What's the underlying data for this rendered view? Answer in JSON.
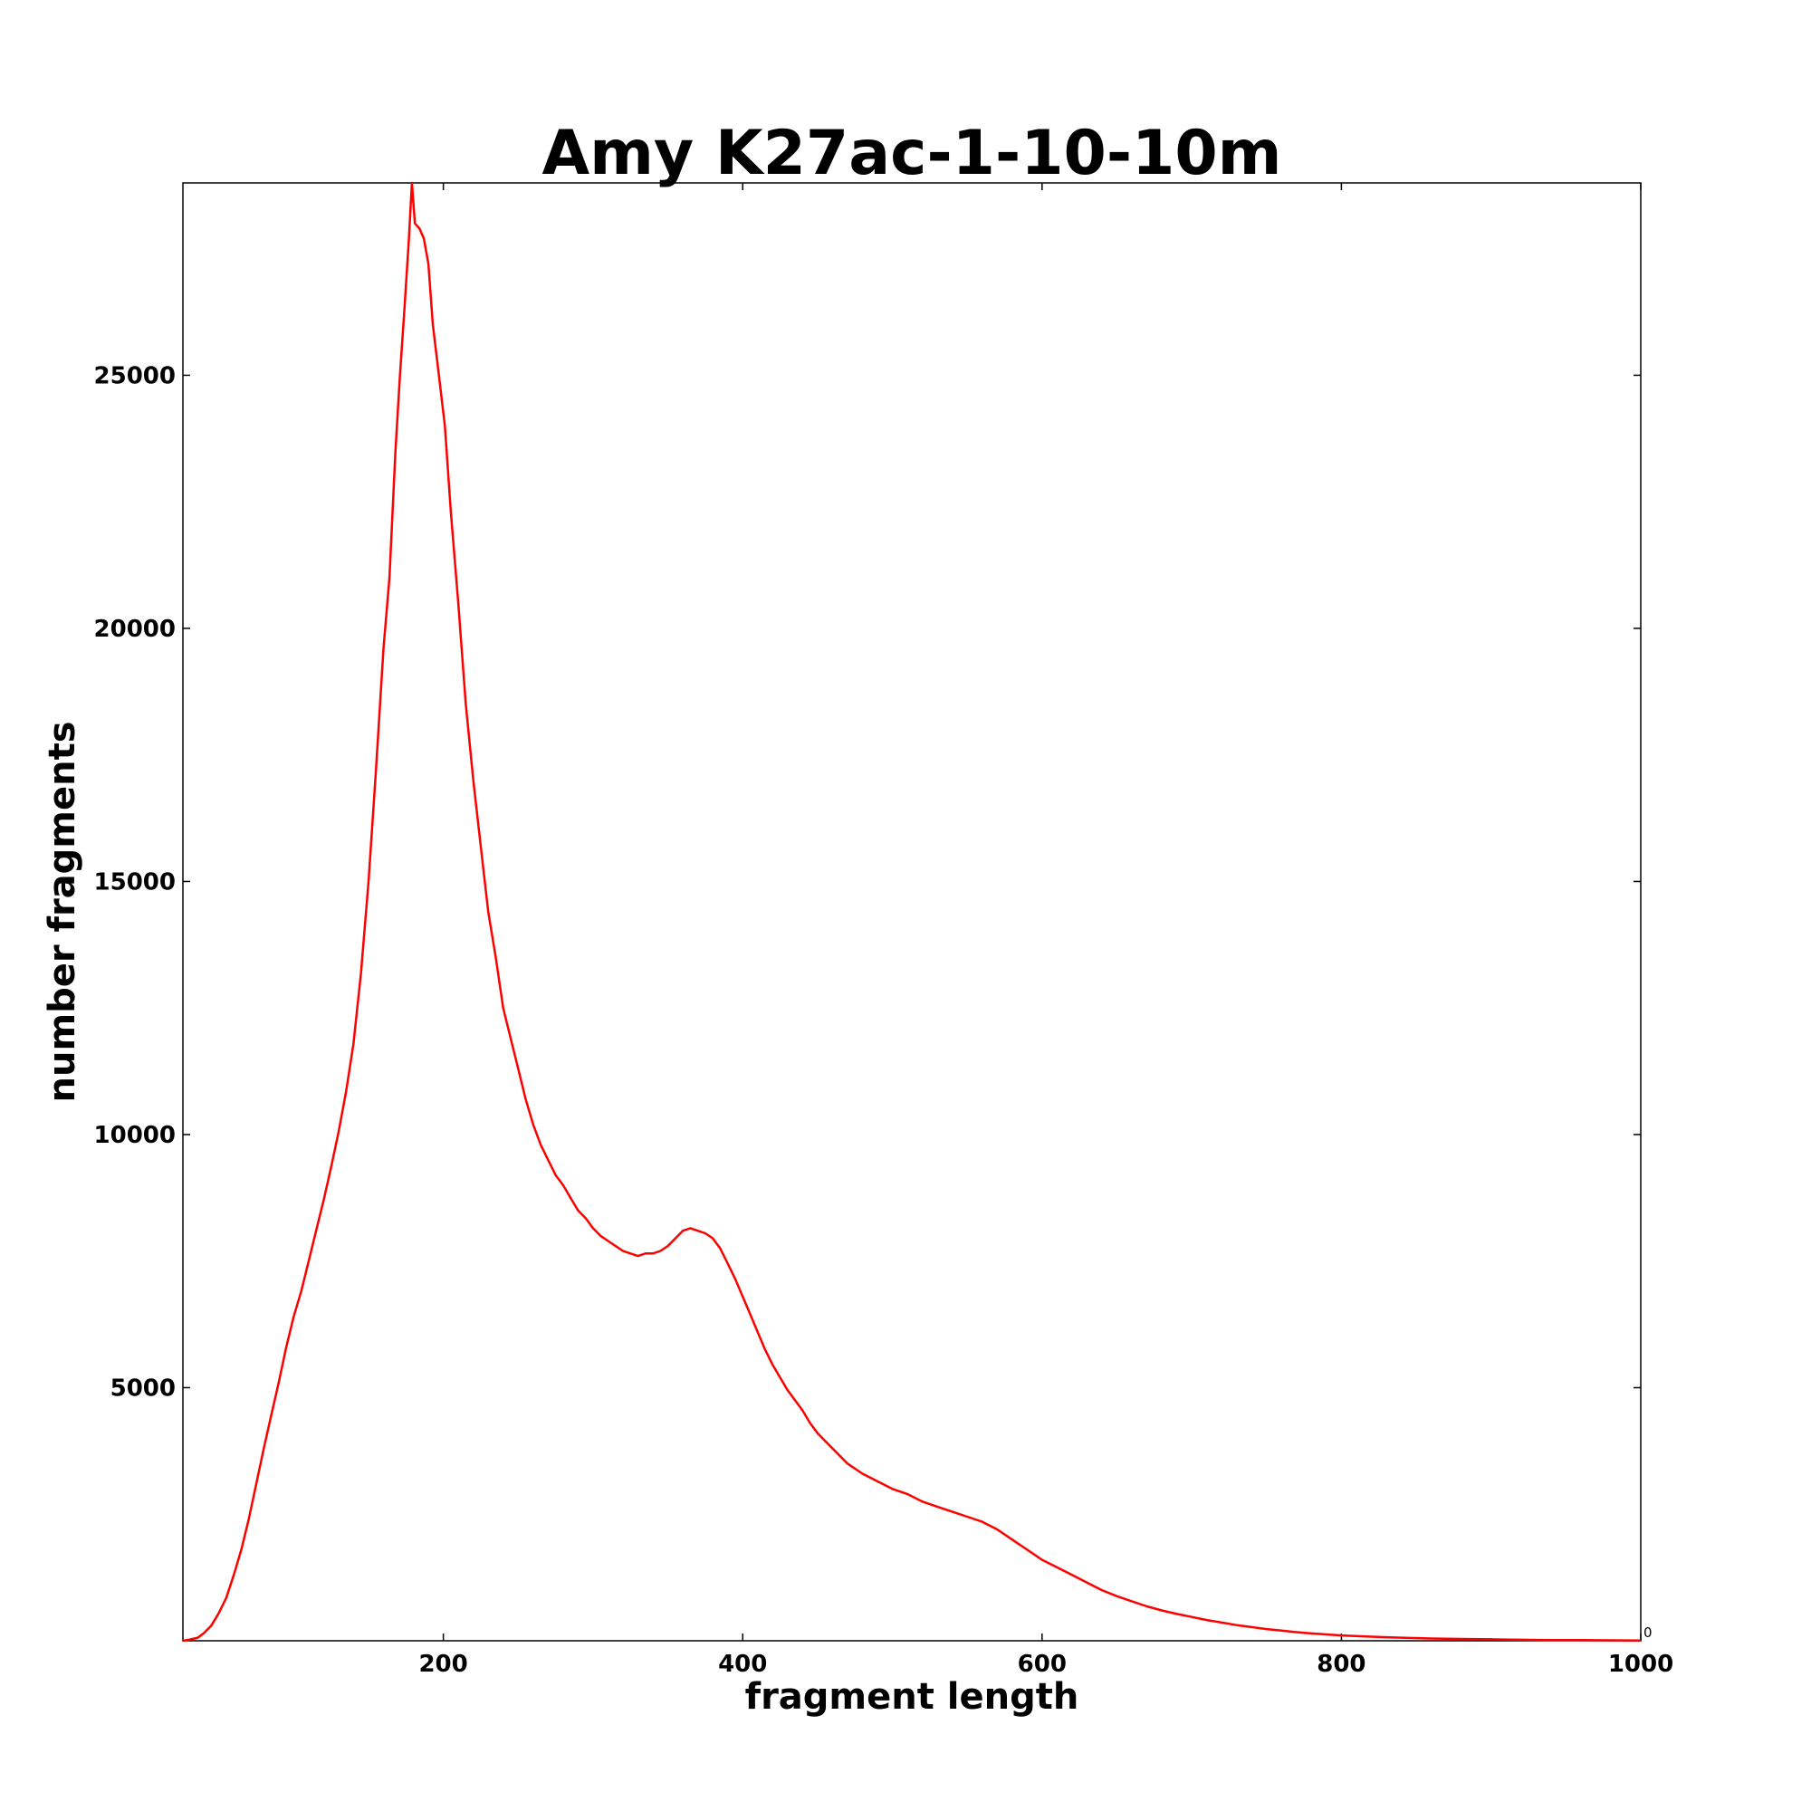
{
  "chart_data": {
    "type": "line",
    "title": "Amy K27ac-1-10-10m",
    "xlabel": "fragment length",
    "ylabel": "number fragments",
    "xlim": [
      26,
      1000
    ],
    "ylim": [
      0,
      28800
    ],
    "xticks": [
      200,
      400,
      600,
      800,
      1000
    ],
    "yticks": [
      5000,
      10000,
      15000,
      20000,
      25000
    ],
    "corner_label": "0",
    "grid": false,
    "legend": "none",
    "series": [
      {
        "color": "#ff0000",
        "points": [
          [
            26,
            0
          ],
          [
            30,
            20
          ],
          [
            36,
            60
          ],
          [
            40,
            150
          ],
          [
            45,
            300
          ],
          [
            50,
            550
          ],
          [
            55,
            850
          ],
          [
            60,
            1300
          ],
          [
            65,
            1800
          ],
          [
            70,
            2400
          ],
          [
            75,
            3100
          ],
          [
            80,
            3800
          ],
          [
            85,
            4450
          ],
          [
            90,
            5100
          ],
          [
            95,
            5800
          ],
          [
            100,
            6400
          ],
          [
            105,
            6900
          ],
          [
            110,
            7500
          ],
          [
            115,
            8100
          ],
          [
            120,
            8700
          ],
          [
            125,
            9350
          ],
          [
            130,
            10050
          ],
          [
            135,
            10850
          ],
          [
            140,
            11800
          ],
          [
            145,
            13200
          ],
          [
            150,
            15000
          ],
          [
            155,
            17200
          ],
          [
            160,
            19600
          ],
          [
            164,
            21000
          ],
          [
            168,
            23500
          ],
          [
            171,
            25000
          ],
          [
            174,
            26300
          ],
          [
            177,
            27700
          ],
          [
            179,
            28800
          ],
          [
            181,
            28000
          ],
          [
            184,
            27900
          ],
          [
            187,
            27700
          ],
          [
            190,
            27200
          ],
          [
            193,
            26000
          ],
          [
            197,
            25000
          ],
          [
            201,
            24000
          ],
          [
            205,
            22300
          ],
          [
            210,
            20500
          ],
          [
            215,
            18500
          ],
          [
            220,
            17000
          ],
          [
            225,
            15700
          ],
          [
            230,
            14400
          ],
          [
            235,
            13500
          ],
          [
            240,
            12500
          ],
          [
            245,
            11900
          ],
          [
            250,
            11300
          ],
          [
            255,
            10700
          ],
          [
            260,
            10200
          ],
          [
            265,
            9800
          ],
          [
            270,
            9500
          ],
          [
            275,
            9200
          ],
          [
            280,
            9000
          ],
          [
            285,
            8750
          ],
          [
            290,
            8500
          ],
          [
            295,
            8350
          ],
          [
            300,
            8150
          ],
          [
            305,
            8000
          ],
          [
            310,
            7900
          ],
          [
            315,
            7800
          ],
          [
            320,
            7700
          ],
          [
            325,
            7650
          ],
          [
            330,
            7600
          ],
          [
            335,
            7650
          ],
          [
            340,
            7650
          ],
          [
            345,
            7700
          ],
          [
            350,
            7800
          ],
          [
            355,
            7950
          ],
          [
            360,
            8100
          ],
          [
            365,
            8150
          ],
          [
            370,
            8100
          ],
          [
            375,
            8050
          ],
          [
            380,
            7950
          ],
          [
            385,
            7750
          ],
          [
            390,
            7450
          ],
          [
            395,
            7150
          ],
          [
            400,
            6800
          ],
          [
            405,
            6450
          ],
          [
            410,
            6100
          ],
          [
            415,
            5750
          ],
          [
            420,
            5450
          ],
          [
            425,
            5200
          ],
          [
            430,
            4950
          ],
          [
            435,
            4750
          ],
          [
            440,
            4550
          ],
          [
            445,
            4300
          ],
          [
            450,
            4100
          ],
          [
            455,
            3950
          ],
          [
            460,
            3800
          ],
          [
            465,
            3650
          ],
          [
            470,
            3500
          ],
          [
            475,
            3400
          ],
          [
            480,
            3300
          ],
          [
            490,
            3150
          ],
          [
            500,
            3000
          ],
          [
            510,
            2900
          ],
          [
            520,
            2750
          ],
          [
            530,
            2650
          ],
          [
            540,
            2550
          ],
          [
            550,
            2450
          ],
          [
            560,
            2350
          ],
          [
            570,
            2200
          ],
          [
            580,
            2000
          ],
          [
            590,
            1800
          ],
          [
            600,
            1600
          ],
          [
            610,
            1450
          ],
          [
            620,
            1300
          ],
          [
            630,
            1150
          ],
          [
            640,
            1000
          ],
          [
            650,
            880
          ],
          [
            660,
            780
          ],
          [
            670,
            680
          ],
          [
            680,
            600
          ],
          [
            690,
            530
          ],
          [
            700,
            470
          ],
          [
            710,
            410
          ],
          [
            720,
            360
          ],
          [
            730,
            310
          ],
          [
            740,
            270
          ],
          [
            750,
            230
          ],
          [
            760,
            200
          ],
          [
            770,
            170
          ],
          [
            780,
            145
          ],
          [
            790,
            125
          ],
          [
            800,
            105
          ],
          [
            820,
            80
          ],
          [
            840,
            60
          ],
          [
            860,
            45
          ],
          [
            880,
            35
          ],
          [
            900,
            28
          ],
          [
            920,
            20
          ],
          [
            940,
            15
          ],
          [
            960,
            12
          ],
          [
            980,
            9
          ],
          [
            1000,
            6
          ]
        ]
      }
    ]
  }
}
